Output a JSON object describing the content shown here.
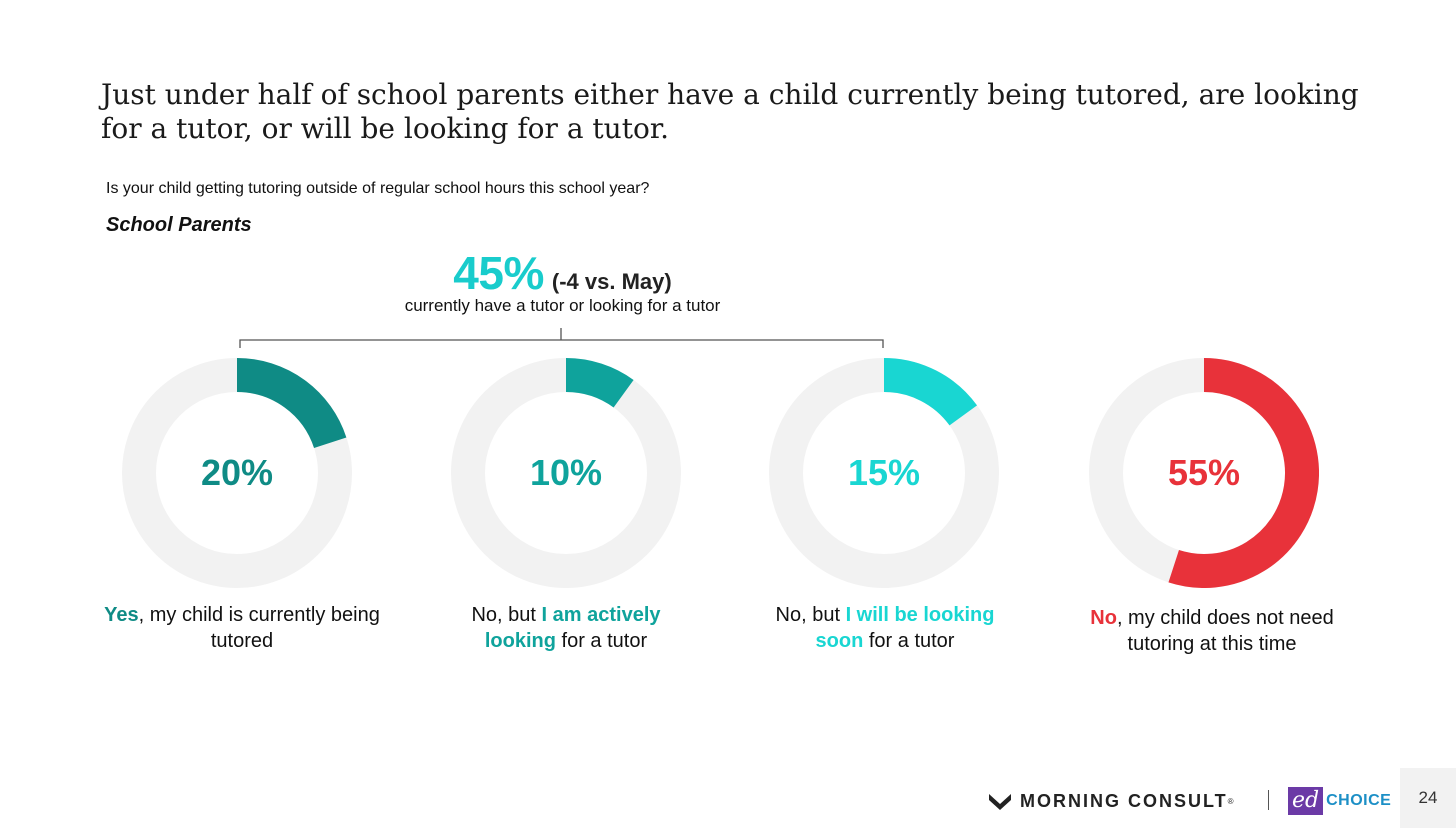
{
  "headline": "Just under half of school parents either have a child currently being tutored, are looking for a tutor, or will be looking for a tutor.",
  "question": "Is your child getting tutoring outside of regular school hours this school year?",
  "audience": "School Parents",
  "summary": {
    "value": "45%",
    "change": "(-4 vs. May)",
    "label": "currently have a tutor or looking for a tutor"
  },
  "colors": {
    "dark_teal": "#0f8b85",
    "mid_teal": "#0fa39c",
    "light_teal": "#19d6d2",
    "red": "#e8323a",
    "track": "#f2f2f2"
  },
  "chart_data": {
    "type": "pie",
    "title": "",
    "donuts": [
      {
        "value": 20,
        "label": "20%",
        "caption_pre": "",
        "caption_hl": "Yes",
        "caption_post": ", my child is currently being tutored"
      },
      {
        "value": 10,
        "label": "10%",
        "caption_pre": "No, but ",
        "caption_hl": "I am actively looking",
        "caption_post": " for a tutor"
      },
      {
        "value": 15,
        "label": "15%",
        "caption_pre": "No, but ",
        "caption_hl": "I will be looking soon",
        "caption_post": " for a tutor"
      },
      {
        "value": 55,
        "label": "55%",
        "caption_pre": "",
        "caption_hl": "No",
        "caption_post": ", my child does not need tutoring at this time"
      }
    ]
  },
  "footer": {
    "brand1": "MORNING CONSULT",
    "brand1_mark": "®",
    "brand2_ed": "ed",
    "brand2_choice": "CHOICE",
    "page_number": "24"
  }
}
